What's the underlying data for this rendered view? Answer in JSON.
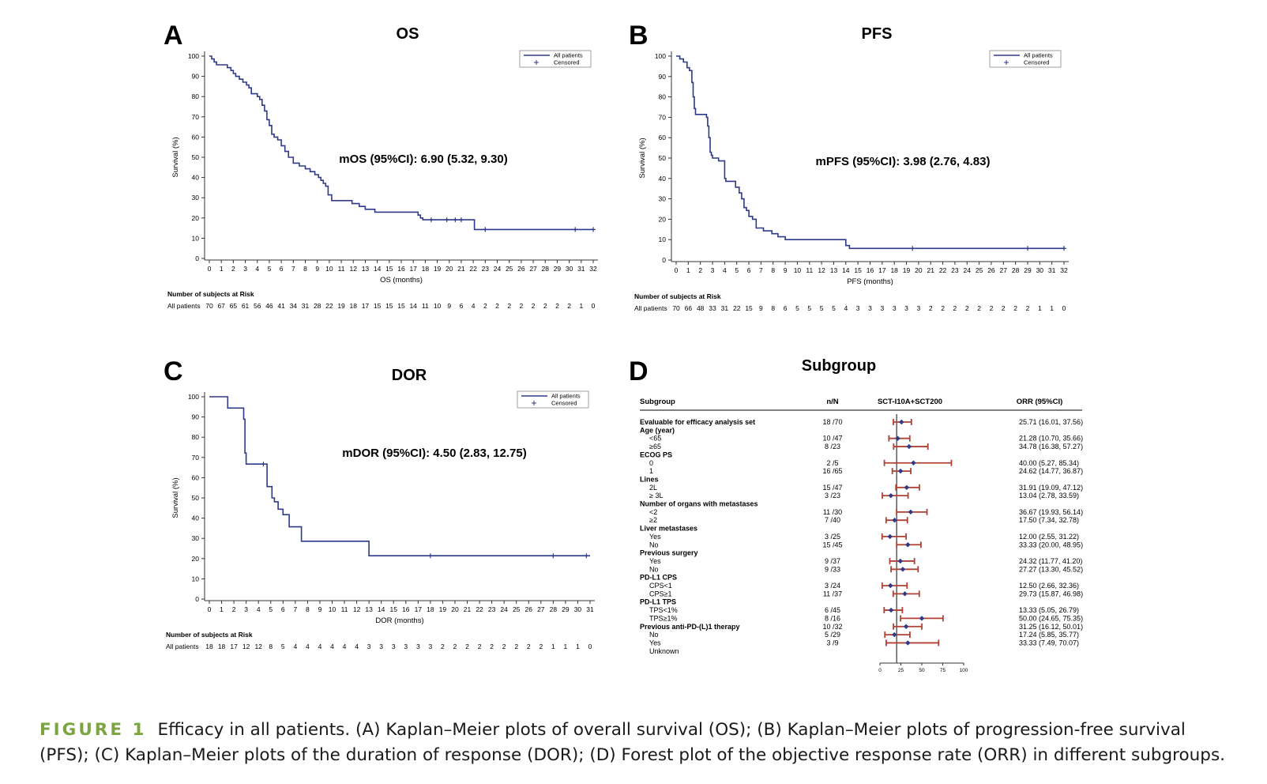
{
  "caption": {
    "label": "FIGURE 1",
    "text": "Efficacy in all patients. (A) Kaplan–Meier plots of overall survival (OS); (B) Kaplan–Meier plots of progression-free survival (PFS); (C) Kaplan–Meier plots of the duration of response (DOR); (D) Forest plot of the objective response rate (ORR) in different subgroups."
  },
  "colors": {
    "curve": "#2e3a87",
    "forest_ci": "#b04032",
    "forest_point": "#2e3a87",
    "axis": "#333333",
    "ref_line": "#666666"
  },
  "chart_data": [
    {
      "panel": "A",
      "type": "line",
      "title": "OS",
      "xlabel": "OS (months)",
      "ylabel": "Survival (%)",
      "xlim": [
        0,
        32
      ],
      "ylim": [
        0,
        100
      ],
      "xticks": [
        0,
        1,
        2,
        3,
        4,
        5,
        6,
        7,
        8,
        9,
        10,
        11,
        12,
        13,
        14,
        15,
        16,
        17,
        18,
        19,
        20,
        21,
        22,
        23,
        24,
        25,
        26,
        27,
        28,
        29,
        30,
        31,
        32
      ],
      "yticks": [
        0,
        10,
        20,
        30,
        40,
        50,
        60,
        70,
        80,
        90,
        100
      ],
      "legend": [
        "All patients",
        "Censored"
      ],
      "annotation": "mOS (95%CI): 6.90 (5.32, 9.30)",
      "series": [
        {
          "name": "All patients",
          "x": [
            0,
            0.2,
            0.4,
            0.6,
            0.8,
            1.5,
            1.8,
            2.0,
            2.2,
            2.5,
            2.8,
            3.1,
            3.3,
            3.5,
            4.0,
            4.2,
            4.4,
            4.6,
            4.8,
            5.0,
            5.2,
            5.4,
            5.7,
            6.0,
            6.3,
            6.6,
            7.0,
            7.5,
            8.0,
            8.4,
            8.8,
            9.1,
            9.3,
            9.5,
            9.7,
            9.9,
            10.2,
            11.9,
            12.5,
            13.0,
            13.8,
            14.8,
            17.4,
            17.6,
            17.8,
            21.8,
            22.1,
            32
          ],
          "y": [
            100,
            98.6,
            97.1,
            95.7,
            95.7,
            94.3,
            92.9,
            91.4,
            90.0,
            88.6,
            87.1,
            85.7,
            84.3,
            81.4,
            80.0,
            78.6,
            75.7,
            72.9,
            68.6,
            65.7,
            61.4,
            60.0,
            58.6,
            55.7,
            52.9,
            50.0,
            47.1,
            45.7,
            44.3,
            42.9,
            41.4,
            40.0,
            38.6,
            37.1,
            35.7,
            31.4,
            28.6,
            27.1,
            25.7,
            24.3,
            22.9,
            22.9,
            21.4,
            20.0,
            19.1,
            19.1,
            14.3,
            14.3
          ]
        }
      ],
      "censored": [
        {
          "x": 18.5,
          "y": 19.1
        },
        {
          "x": 19.8,
          "y": 19.1
        },
        {
          "x": 20.5,
          "y": 19.1
        },
        {
          "x": 21.0,
          "y": 19.1
        },
        {
          "x": 23.0,
          "y": 14.3
        },
        {
          "x": 30.5,
          "y": 14.3
        },
        {
          "x": 32.0,
          "y": 14.3
        }
      ],
      "risk": {
        "heading": "Number of subjects at Risk",
        "label": "All patients",
        "values": [
          "70",
          "67",
          "65",
          "61",
          "56",
          "46",
          "41",
          "34",
          "31",
          "28",
          "22",
          "19",
          "18",
          "17",
          "15",
          "15",
          "15",
          "14",
          "11",
          "10",
          "9",
          "6",
          "4",
          "2",
          "2",
          "2",
          "2",
          "2",
          "2",
          "2",
          "2",
          "1",
          "0"
        ]
      }
    },
    {
      "panel": "B",
      "type": "line",
      "title": "PFS",
      "xlabel": "PFS (months)",
      "ylabel": "Survival (%)",
      "xlim": [
        0,
        32
      ],
      "ylim": [
        0,
        100
      ],
      "xticks": [
        0,
        1,
        2,
        3,
        4,
        5,
        6,
        7,
        8,
        9,
        10,
        11,
        12,
        13,
        14,
        15,
        16,
        17,
        18,
        19,
        20,
        21,
        22,
        23,
        24,
        25,
        26,
        27,
        28,
        29,
        30,
        31,
        32
      ],
      "yticks": [
        0,
        10,
        20,
        30,
        40,
        50,
        60,
        70,
        80,
        90,
        100
      ],
      "legend": [
        "All patients",
        "Censored"
      ],
      "annotation": "mPFS (95%CI): 3.98 (2.76, 4.83)",
      "series": [
        {
          "name": "All patients",
          "x": [
            0,
            0.3,
            0.6,
            0.9,
            1.1,
            1.3,
            1.4,
            1.5,
            1.6,
            2.5,
            2.6,
            2.7,
            2.8,
            2.9,
            3.0,
            3.1,
            3.5,
            4.0,
            4.1,
            4.9,
            5.2,
            5.4,
            5.6,
            5.8,
            6.0,
            6.3,
            6.6,
            7.2,
            7.9,
            8.4,
            9.0,
            14.0,
            14.3,
            32
          ],
          "y": [
            100,
            98.6,
            97.1,
            94.3,
            92.9,
            87.1,
            80.0,
            74.3,
            71.4,
            70.0,
            65.7,
            60.0,
            52.9,
            51.4,
            50.0,
            50.0,
            48.6,
            40.0,
            38.6,
            35.7,
            32.9,
            30.0,
            25.7,
            24.3,
            21.4,
            20.0,
            15.7,
            14.3,
            12.9,
            11.4,
            10.0,
            7.1,
            5.7,
            5.7
          ]
        }
      ],
      "censored": [
        {
          "x": 19.5,
          "y": 5.7
        },
        {
          "x": 29.0,
          "y": 5.7
        },
        {
          "x": 32.0,
          "y": 5.7
        }
      ],
      "risk": {
        "heading": "Number of subjects at Risk",
        "label": "All patients",
        "values": [
          "70",
          "66",
          "48",
          "33",
          "31",
          "22",
          "15",
          "9",
          "8",
          "6",
          "5",
          "5",
          "5",
          "5",
          "4",
          "3",
          "3",
          "3",
          "3",
          "3",
          "3",
          "2",
          "2",
          "2",
          "2",
          "2",
          "2",
          "2",
          "2",
          "2",
          "1",
          "1",
          "0"
        ]
      }
    },
    {
      "panel": "C",
      "type": "line",
      "title": "DOR",
      "xlabel": "DOR (months)",
      "ylabel": "Survival (%)",
      "xlim": [
        0,
        31
      ],
      "ylim": [
        0,
        100
      ],
      "xticks": [
        0,
        1,
        2,
        3,
        4,
        5,
        6,
        7,
        8,
        9,
        10,
        11,
        12,
        13,
        14,
        15,
        16,
        17,
        18,
        19,
        20,
        21,
        22,
        23,
        24,
        25,
        26,
        27,
        28,
        29,
        30,
        31
      ],
      "yticks": [
        0,
        10,
        20,
        30,
        40,
        50,
        60,
        70,
        80,
        90,
        100
      ],
      "legend": [
        "All patients",
        "Censored"
      ],
      "annotation": "mDOR (95%CI): 4.50 (2.83, 12.75)",
      "series": [
        {
          "name": "All patients",
          "x": [
            0,
            1.5,
            2.8,
            2.9,
            3.0,
            4.5,
            4.7,
            5.1,
            5.3,
            5.6,
            6.0,
            6.5,
            7.2,
            7.5,
            12.8,
            13.0,
            31
          ],
          "y": [
            100,
            94.4,
            88.9,
            72.2,
            66.7,
            66.7,
            55.6,
            50.0,
            48.1,
            44.4,
            41.7,
            35.7,
            35.7,
            28.6,
            28.6,
            21.4,
            21.4
          ]
        }
      ],
      "censored": [
        {
          "x": 4.4,
          "y": 66.7
        },
        {
          "x": 18.0,
          "y": 21.4
        },
        {
          "x": 28.0,
          "y": 21.4
        },
        {
          "x": 30.7,
          "y": 21.4
        }
      ],
      "risk": {
        "heading": "Number of subjects at Risk",
        "label": "All patients",
        "values": [
          "18",
          "18",
          "17",
          "12",
          "12",
          "8",
          "5",
          "4",
          "4",
          "4",
          "4",
          "4",
          "4",
          "3",
          "3",
          "3",
          "3",
          "3",
          "3",
          "2",
          "2",
          "2",
          "2",
          "2",
          "2",
          "2",
          "2",
          "2",
          "1",
          "1",
          "1",
          "0"
        ]
      }
    },
    {
      "panel": "D",
      "type": "forest",
      "title": "Subgroup",
      "columns": [
        "Subgroup",
        "n/N",
        "SCT-I10A+SCT200",
        "ORR (95%CI)"
      ],
      "xlim": [
        0,
        100
      ],
      "xticks": [
        0,
        25,
        50,
        75,
        100
      ],
      "reference_line": 20,
      "rows": [
        {
          "label": "Evaluable for efficacy analysis set",
          "header": true,
          "nN": "18 /70",
          "est": 25.71,
          "lo": 16.01,
          "hi": 37.56,
          "text": "25.71 (16.01, 37.56)"
        },
        {
          "label": "Age (year)",
          "header": true
        },
        {
          "label": "<65",
          "nN": "10 /47",
          "est": 21.28,
          "lo": 10.7,
          "hi": 35.66,
          "text": "21.28 (10.70, 35.66)"
        },
        {
          "label": "≥65",
          "nN": "8 /23",
          "est": 34.78,
          "lo": 16.38,
          "hi": 57.27,
          "text": "34.78 (16.38, 57.27)"
        },
        {
          "label": "ECOG PS",
          "header": true
        },
        {
          "label": "0",
          "nN": "2 /5",
          "est": 40.0,
          "lo": 5.27,
          "hi": 85.34,
          "text": "40.00 (5.27,  85.34)"
        },
        {
          "label": "1",
          "nN": "16 /65",
          "est": 24.62,
          "lo": 14.77,
          "hi": 36.87,
          "text": "24.62 (14.77, 36.87)"
        },
        {
          "label": "Lines",
          "header": true
        },
        {
          "label": "2L",
          "nN": "15 /47",
          "est": 31.91,
          "lo": 19.09,
          "hi": 47.12,
          "text": "31.91 (19.09, 47.12)"
        },
        {
          "label": "≥ 3L",
          "nN": "3 /23",
          "est": 13.04,
          "lo": 2.78,
          "hi": 33.59,
          "text": "13.04 (2.78,  33.59)"
        },
        {
          "label": "Number of organs with metastases",
          "header": true
        },
        {
          "label": "<2",
          "nN": "11 /30",
          "est": 36.67,
          "lo": 19.93,
          "hi": 56.14,
          "text": "36.67 (19.93, 56.14)"
        },
        {
          "label": "≥2",
          "nN": "7 /40",
          "est": 17.5,
          "lo": 7.34,
          "hi": 32.78,
          "text": "17.50 (7.34,  32.78)"
        },
        {
          "label": "Liver metastases",
          "header": true
        },
        {
          "label": "Yes",
          "nN": "3 /25",
          "est": 12.0,
          "lo": 2.55,
          "hi": 31.22,
          "text": "12.00 (2.55,  31.22)"
        },
        {
          "label": "No",
          "nN": "15 /45",
          "est": 33.33,
          "lo": 20.0,
          "hi": 48.95,
          "text": "33.33 (20.00, 48.95)"
        },
        {
          "label": "Previous surgery",
          "header": true
        },
        {
          "label": "Yes",
          "nN": "9 /37",
          "est": 24.32,
          "lo": 11.77,
          "hi": 41.2,
          "text": "24.32 (11.77, 41.20)"
        },
        {
          "label": "No",
          "nN": "9 /33",
          "est": 27.27,
          "lo": 13.3,
          "hi": 45.52,
          "text": "27.27 (13.30, 45.52)"
        },
        {
          "label": "PD-L1 CPS",
          "header": true
        },
        {
          "label": "CPS<1",
          "nN": "3 /24",
          "est": 12.5,
          "lo": 2.66,
          "hi": 32.36,
          "text": "12.50 (2.66,  32.36)"
        },
        {
          "label": "CPS≥1",
          "nN": "11 /37",
          "est": 29.73,
          "lo": 15.87,
          "hi": 46.98,
          "text": "29.73 (15.87, 46.98)"
        },
        {
          "label": "PD-L1 TPS",
          "header": true
        },
        {
          "label": "TPS<1%",
          "nN": "6 /45",
          "est": 13.33,
          "lo": 5.05,
          "hi": 26.79,
          "text": "13.33 (5.05,  26.79)"
        },
        {
          "label": "TPS≥1%",
          "nN": "8 /16",
          "est": 50.0,
          "lo": 24.65,
          "hi": 75.35,
          "text": "50.00 (24.65, 75.35)"
        },
        {
          "label": "Previous anti-PD-(L)1 therapy",
          "header": true,
          "nN": "10 /32",
          "est": 31.25,
          "lo": 16.12,
          "hi": 50.01,
          "text": "31.25 (16.12, 50.01)"
        },
        {
          "label": "No",
          "nN": "5 /29",
          "est": 17.24,
          "lo": 5.85,
          "hi": 35.77,
          "text": "17.24 (5.85,  35.77)"
        },
        {
          "label": "Yes",
          "nN": "3 /9",
          "est": 33.33,
          "lo": 7.49,
          "hi": 70.07,
          "text": "33.33 (7.49,  70.07)"
        },
        {
          "label": "Unknown"
        }
      ]
    }
  ]
}
